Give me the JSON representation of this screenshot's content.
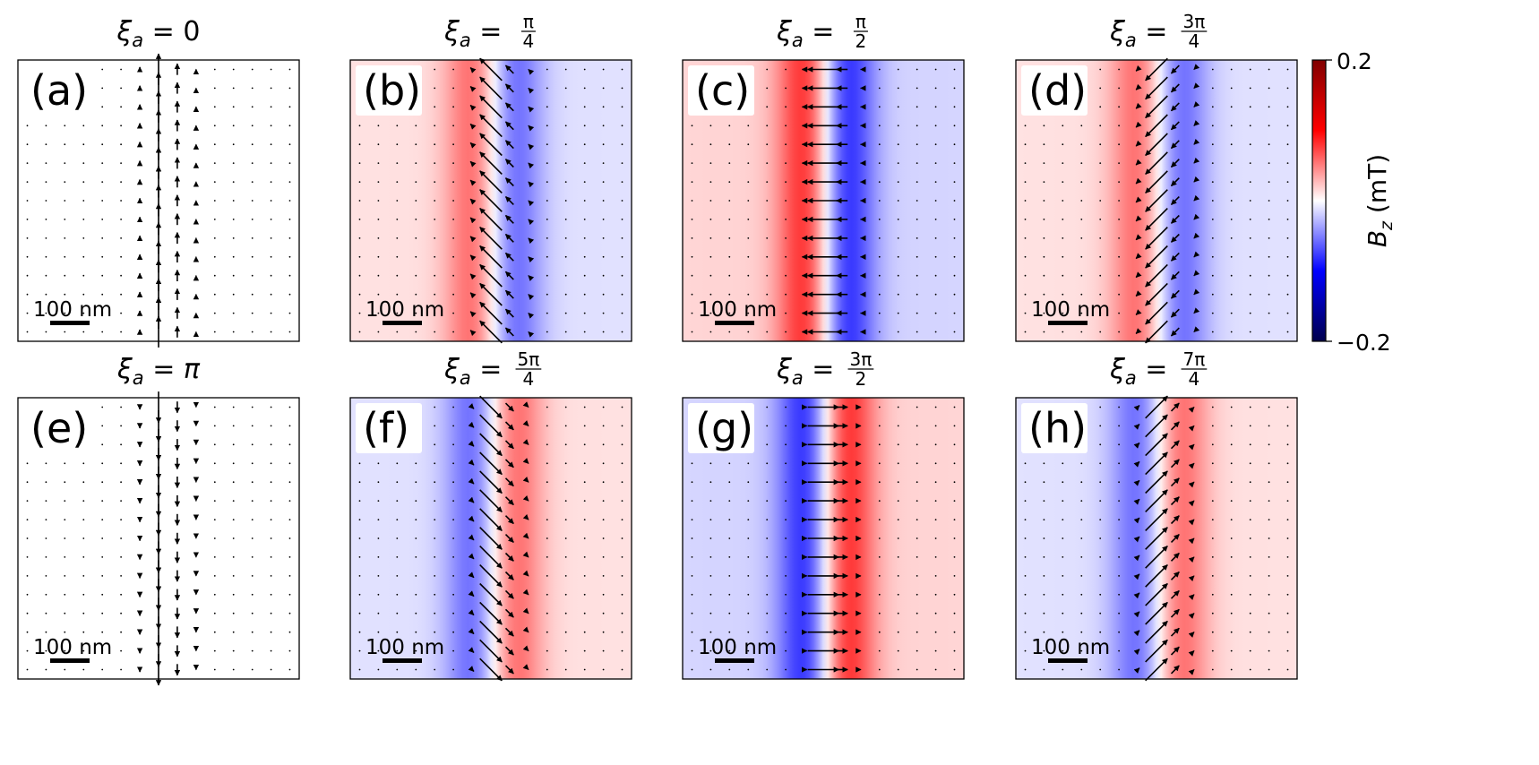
{
  "chart_data": {
    "type": "heatmap",
    "description_note": "Eight vector-field panels with colormap background Bz",
    "colorbar": {
      "label_main": "B",
      "label_sub": "z",
      "label_unit": " (mT)",
      "max_label": "0.2",
      "min_label": "−0.2",
      "range": [
        -0.2,
        0.2
      ],
      "colors": {
        "neg_dark": "#00004d",
        "neg": "#0000ff",
        "zero": "#ffffff",
        "pos": "#ff0000",
        "pos_dark": "#800000"
      }
    },
    "scale_bar_label": "100 nm",
    "title_prefix": "ξ",
    "title_sub": "a",
    "title_eq": " = ",
    "panels": [
      {
        "label": "(a)",
        "phase_text": "0",
        "phase_type": "plain",
        "xi_pi": 0.0
      },
      {
        "label": "(b)",
        "phase_text": "π/4",
        "phase_type": "frac",
        "num": "π",
        "den": "4",
        "xi_pi": 0.25
      },
      {
        "label": "(c)",
        "phase_text": "π/2",
        "phase_type": "frac",
        "num": "π",
        "den": "2",
        "xi_pi": 0.5
      },
      {
        "label": "(d)",
        "phase_text": "3π/4",
        "phase_type": "frac",
        "num": "3π",
        "den": "4",
        "xi_pi": 0.75
      },
      {
        "label": "(e)",
        "phase_text": "π",
        "phase_type": "italic",
        "xi_pi": 1.0
      },
      {
        "label": "(f)",
        "phase_text": "5π/4",
        "phase_type": "frac",
        "num": "5π",
        "den": "4",
        "xi_pi": 1.25
      },
      {
        "label": "(g)",
        "phase_text": "3π/2",
        "phase_type": "frac",
        "num": "3π",
        "den": "2",
        "xi_pi": 1.5
      },
      {
        "label": "(h)",
        "phase_text": "7π/4",
        "phase_type": "frac",
        "num": "7π",
        "den": "4",
        "xi_pi": 1.75
      }
    ]
  }
}
